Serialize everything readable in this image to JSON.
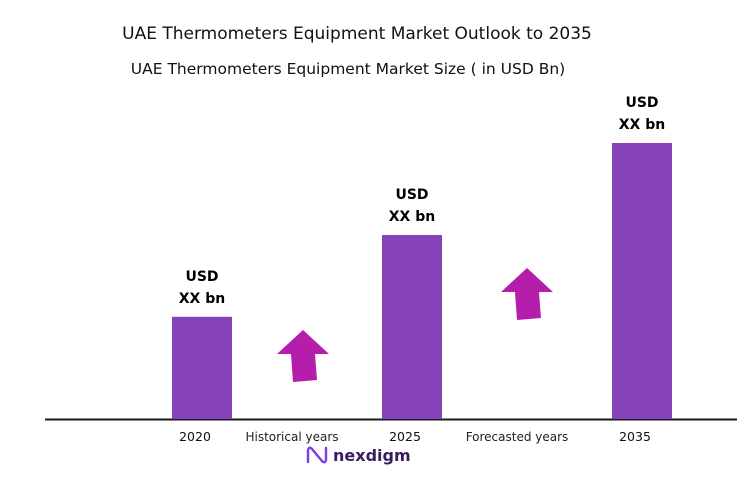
{
  "chart_data": {
    "type": "bar",
    "title": "UAE Thermometers Equipment Market Outlook to 2035",
    "subtitle": "UAE Thermometers  Equipment Market Size  ( in USD Bn)",
    "categories": [
      "2020",
      "2025",
      "2035"
    ],
    "values": [
      1,
      1.8,
      2.7
    ],
    "value_labels": [
      [
        "USD",
        "XX bn"
      ],
      [
        "USD",
        "XX bn"
      ],
      [
        "USD",
        "XX bn"
      ]
    ],
    "period_labels": [
      "Historical years",
      "Forecasted years"
    ],
    "growth_arrows": 2,
    "xlabel": "",
    "ylabel": "",
    "grid": false,
    "colors": {
      "bar": "#8642b9",
      "arrow": "#b51eab",
      "axis": "#1a1a1a",
      "text": "#111111"
    }
  },
  "brand": {
    "name": "nexdigm",
    "icon": "nexdigm-logo-icon"
  }
}
